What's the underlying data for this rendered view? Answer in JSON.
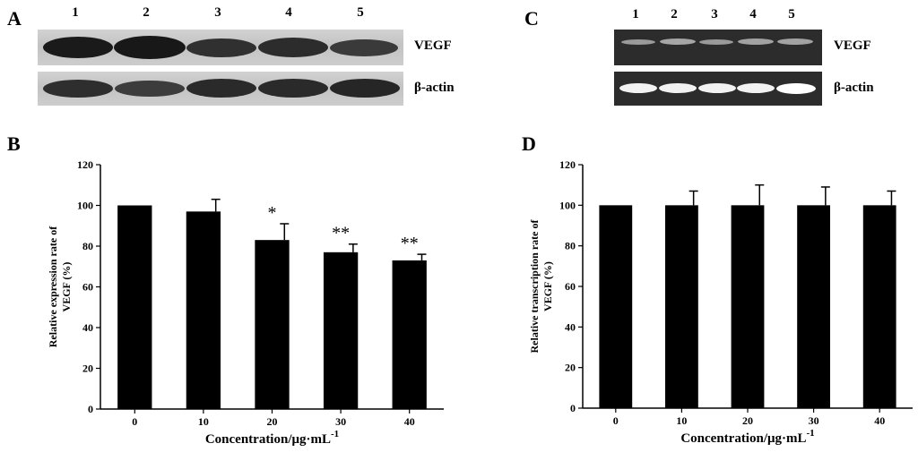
{
  "panels": {
    "a": {
      "letter": "A",
      "lanes": [
        "1",
        "2",
        "3",
        "4",
        "5"
      ],
      "bands": [
        "VEGF",
        "β-actin"
      ]
    },
    "b": {
      "letter": "B"
    },
    "c": {
      "letter": "C",
      "lanes": [
        "1",
        "2",
        "3",
        "4",
        "5"
      ],
      "bands": [
        "VEGF",
        "β-actin"
      ]
    },
    "d": {
      "letter": "D"
    }
  },
  "colors": {
    "bar": "#000000",
    "gel_background": "#2c2c2c",
    "western_background": "#c8c8c8"
  },
  "chart_data": [
    {
      "type": "bar",
      "panel": "B",
      "categories": [
        "0",
        "10",
        "20",
        "30",
        "40"
      ],
      "values": [
        100,
        97,
        83,
        77,
        73
      ],
      "error": [
        0,
        6,
        8,
        4,
        3
      ],
      "significance": [
        "",
        "",
        "*",
        "**",
        "**"
      ],
      "xlabel": "Concentration/μg·mL",
      "xlabel_sup": "-1",
      "ylabel_line1": "Relative expression rate of",
      "ylabel_line2": "VEGF (%)",
      "ylim": [
        0,
        120
      ],
      "yticks": [
        "0",
        "20",
        "40",
        "60",
        "80",
        "100",
        "120"
      ],
      "grid": false
    },
    {
      "type": "bar",
      "panel": "D",
      "categories": [
        "0",
        "10",
        "20",
        "30",
        "40"
      ],
      "values": [
        100,
        100,
        100,
        100,
        100
      ],
      "error": [
        0,
        7,
        10,
        9,
        7
      ],
      "significance": [
        "",
        "",
        "",
        "",
        ""
      ],
      "xlabel": "Concentration/μg·mL",
      "xlabel_sup": "-1",
      "ylabel_line1": "Relative transcription rate of",
      "ylabel_line2": "VEGF (%)",
      "ylim": [
        0,
        120
      ],
      "yticks": [
        "0",
        "20",
        "40",
        "60",
        "80",
        "100",
        "120"
      ],
      "grid": false
    }
  ]
}
